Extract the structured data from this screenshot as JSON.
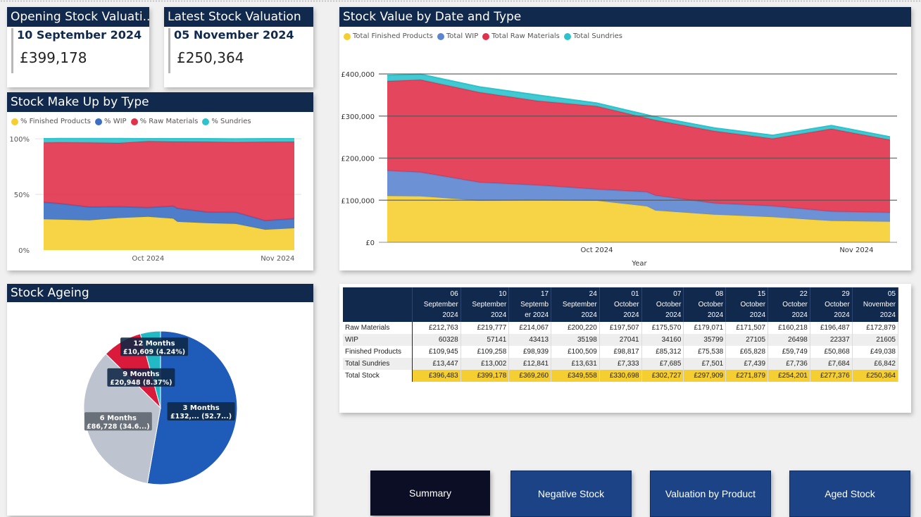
{
  "kpi": [
    {
      "title": "Opening Stock Valuati...",
      "date": "10 September 2024",
      "value": "£399,178"
    },
    {
      "title": "Latest Stock Valuation",
      "date": "05 November 2024",
      "value": "£250,364"
    }
  ],
  "makeup": {
    "title": "Stock Make Up by Type",
    "legend": [
      {
        "label": "% Finished Products",
        "color": "#f5cf31"
      },
      {
        "label": "% WIP",
        "color": "#3b6fc4"
      },
      {
        "label": "% Raw Materials",
        "color": "#e0324b"
      },
      {
        "label": "% Sundries",
        "color": "#2ec3cc"
      }
    ],
    "y_ticks": [
      "100%",
      "50%",
      "0%"
    ],
    "x_ticks": [
      "Oct 2024",
      "Nov 2024"
    ]
  },
  "value_chart": {
    "title": "Stock Value by Date and Type",
    "legend": [
      {
        "label": "Total Finished Products",
        "color": "#f5cf31"
      },
      {
        "label": "Total WIP",
        "color": "#5c85cf"
      },
      {
        "label": "Total Raw Materials",
        "color": "#e0324b"
      },
      {
        "label": "Total Sundries",
        "color": "#2ec3cc"
      }
    ],
    "y_ticks": [
      "£400,000",
      "£300,000",
      "£200,000",
      "£100,000",
      "£0"
    ],
    "x_ticks": [
      "Oct 2024",
      "Nov 2024"
    ],
    "x_label": "Year"
  },
  "ageing": {
    "title": "Stock Ageing",
    "slices": [
      {
        "label": "3 Months",
        "detail": "£132,... (52.7...)",
        "value": 52.7,
        "color": "#1f5bb8"
      },
      {
        "label": "6 Months",
        "detail": "£86,728 (34.6...)",
        "value": 34.6,
        "color": "#bec4cf"
      },
      {
        "label": "9 Months",
        "detail": "£20,948 (8.37%)",
        "value": 8.37,
        "color": "#d91a3a"
      },
      {
        "label": "12 Months",
        "detail": "£10,609 (4.24%)",
        "value": 4.24,
        "color": "#22b9c4"
      }
    ]
  },
  "table": {
    "dates": [
      [
        "06",
        "September",
        "2024"
      ],
      [
        "10",
        "September",
        "2024"
      ],
      [
        "17",
        "Septemb",
        "er 2024"
      ],
      [
        "24",
        "September",
        "2024"
      ],
      [
        "01",
        "October",
        "2024"
      ],
      [
        "07",
        "October",
        "2024"
      ],
      [
        "08",
        "October",
        "2024"
      ],
      [
        "15",
        "October",
        "2024"
      ],
      [
        "22",
        "October",
        "2024"
      ],
      [
        "29",
        "October",
        "2024"
      ],
      [
        "05",
        "November",
        "2024"
      ]
    ],
    "rows": [
      {
        "label": "Raw Materials",
        "values": [
          "£212,763",
          "£219,777",
          "£214,067",
          "£200,220",
          "£197,507",
          "£175,570",
          "£179,071",
          "£171,507",
          "£160,218",
          "£196,487",
          "£172,879"
        ]
      },
      {
        "label": "WIP",
        "values": [
          "60328",
          "57141",
          "43413",
          "35198",
          "27041",
          "34160",
          "35799",
          "27105",
          "26498",
          "22337",
          "21605"
        ]
      },
      {
        "label": "Finished Products",
        "values": [
          "£109,945",
          "£109,258",
          "£98,939",
          "£100,509",
          "£98,817",
          "£85,312",
          "£75,538",
          "£65,828",
          "£59,749",
          "£50,868",
          "£49,038"
        ]
      },
      {
        "label": "Total Sundries",
        "values": [
          "£13,447",
          "£13,002",
          "£12,841",
          "£13,631",
          "£7,333",
          "£7,685",
          "£7,501",
          "£7,439",
          "£7,736",
          "£7,684",
          "£6,842"
        ]
      },
      {
        "label": "Total Stock",
        "values": [
          "£396,483",
          "£399,178",
          "£369,260",
          "£349,558",
          "£330,698",
          "£302,727",
          "£297,909",
          "£271,879",
          "£254,201",
          "£277,376",
          "£250,364"
        ]
      }
    ]
  },
  "buttons": [
    "Summary",
    "Negative Stock",
    "Valuation by Product",
    "Aged Stock"
  ],
  "chart_data": [
    {
      "type": "area",
      "title": "Stock Value by Date and Type",
      "xlabel": "Year",
      "ylim": [
        0,
        400000
      ],
      "x": [
        "2024-09-06",
        "2024-09-10",
        "2024-09-17",
        "2024-09-24",
        "2024-10-01",
        "2024-10-07",
        "2024-10-08",
        "2024-10-15",
        "2024-10-22",
        "2024-10-29",
        "2024-11-05"
      ],
      "series": [
        {
          "name": "Total Finished Products",
          "values": [
            109945,
            109258,
            98939,
            100509,
            98817,
            85312,
            75538,
            65828,
            59749,
            50868,
            49038
          ]
        },
        {
          "name": "Total WIP",
          "values": [
            60328,
            57141,
            43413,
            35198,
            27041,
            34160,
            35799,
            27105,
            26498,
            22337,
            21605
          ]
        },
        {
          "name": "Total Raw Materials",
          "values": [
            212763,
            219777,
            214067,
            200220,
            197507,
            175570,
            179071,
            171507,
            160218,
            196487,
            172879
          ]
        },
        {
          "name": "Total Sundries",
          "values": [
            13447,
            13002,
            12841,
            13631,
            7333,
            7685,
            7501,
            7439,
            7736,
            7684,
            6842
          ]
        }
      ]
    },
    {
      "type": "area",
      "title": "Stock Make Up by Type",
      "stacking": "percent",
      "ylim": [
        0,
        100
      ],
      "x": [
        "2024-09-06",
        "2024-09-10",
        "2024-09-17",
        "2024-09-24",
        "2024-10-01",
        "2024-10-07",
        "2024-10-08",
        "2024-10-15",
        "2024-10-22",
        "2024-10-29",
        "2024-11-05"
      ],
      "series": [
        {
          "name": "% Finished Products",
          "values": [
            27.7,
            27.4,
            26.8,
            28.8,
            29.9,
            28.2,
            25.4,
            24.2,
            23.5,
            18.3,
            19.6
          ]
        },
        {
          "name": "% WIP",
          "values": [
            15.2,
            14.3,
            11.8,
            10.1,
            8.2,
            11.3,
            12.0,
            10.0,
            10.4,
            8.1,
            8.6
          ]
        },
        {
          "name": "% Raw Materials",
          "values": [
            53.7,
            55.1,
            58.0,
            57.3,
            59.7,
            58.0,
            60.1,
            63.1,
            63.0,
            70.8,
            69.1
          ]
        },
        {
          "name": "% Sundries",
          "values": [
            3.4,
            3.3,
            3.5,
            3.9,
            2.2,
            2.5,
            2.5,
            2.7,
            3.0,
            2.8,
            2.7
          ]
        }
      ]
    },
    {
      "type": "pie",
      "title": "Stock Ageing",
      "categories": [
        "3 Months",
        "6 Months",
        "9 Months",
        "12 Months"
      ],
      "values": [
        52.7,
        34.6,
        8.37,
        4.24
      ]
    }
  ]
}
